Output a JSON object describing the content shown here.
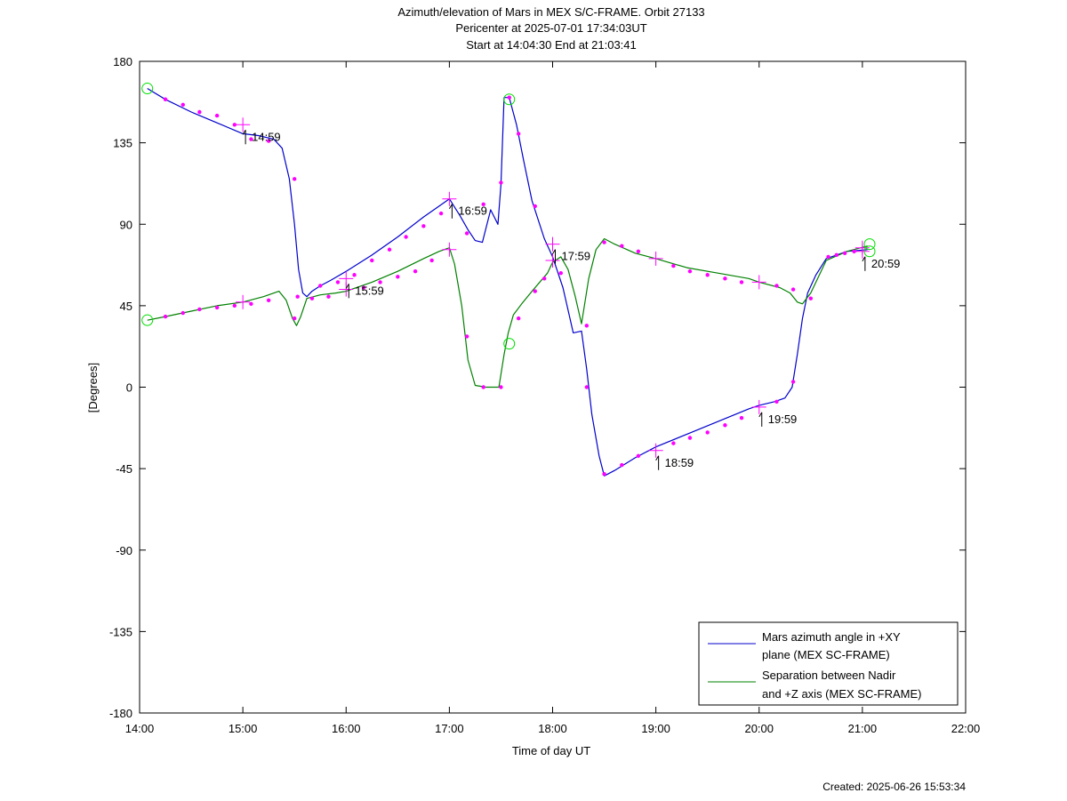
{
  "chart_data": {
    "type": "line",
    "title": [
      "Azimuth/elevation of Mars in MEX S/C-FRAME.  Orbit 27133",
      "Pericenter at 2025-07-01 17:34:03UT",
      "Start at 14:04:30 End at 21:03:41"
    ],
    "xlabel": "Time of day UT",
    "ylabel": "[Degrees]",
    "xlim": [
      14.0,
      22.0
    ],
    "ylim": [
      -180,
      180
    ],
    "xticks": [
      {
        "v": 14,
        "label": "14:00"
      },
      {
        "v": 15,
        "label": "15:00"
      },
      {
        "v": 16,
        "label": "16:00"
      },
      {
        "v": 17,
        "label": "17:00"
      },
      {
        "v": 18,
        "label": "18:00"
      },
      {
        "v": 19,
        "label": "19:00"
      },
      {
        "v": 20,
        "label": "20:00"
      },
      {
        "v": 21,
        "label": "21:00"
      },
      {
        "v": 22,
        "label": "22:00"
      }
    ],
    "yticks": [
      {
        "v": 180,
        "label": "180"
      },
      {
        "v": 135,
        "label": "135"
      },
      {
        "v": 90,
        "label": "90"
      },
      {
        "v": 45,
        "label": "45"
      },
      {
        "v": 0,
        "label": "0"
      },
      {
        "v": -45,
        "label": "-45"
      },
      {
        "v": -90,
        "label": "-90"
      },
      {
        "v": -135,
        "label": "-135"
      },
      {
        "v": -180,
        "label": "-180"
      }
    ],
    "grid": false,
    "legend_position": "bottom-right",
    "series": [
      {
        "name": "Mars azimuth angle in +XY plane (MEX SC-FRAME)",
        "legend_lines": [
          "Mars azimuth angle in +XY",
          "plane (MEX SC-FRAME)"
        ],
        "color": "#0000cc",
        "x": [
          14.075,
          14.25,
          14.5,
          14.75,
          15.0,
          15.15,
          15.3,
          15.38,
          15.45,
          15.5,
          15.54,
          15.58,
          15.62,
          15.67,
          15.75,
          15.85,
          16.0,
          16.25,
          16.5,
          16.75,
          16.9,
          17.0,
          17.1,
          17.18,
          17.25,
          17.32,
          17.4,
          17.47,
          17.5,
          17.53,
          17.58,
          17.65,
          17.72,
          17.8,
          17.92,
          18.0,
          18.1,
          18.2,
          18.28,
          18.33,
          18.38,
          18.45,
          18.5,
          18.6,
          18.8,
          19.0,
          19.3,
          19.6,
          19.9,
          20.0,
          20.15,
          20.25,
          20.32,
          20.37,
          20.42,
          20.47,
          20.55,
          20.65,
          20.85,
          21.05
        ],
        "y": [
          165,
          159,
          152,
          146,
          140,
          139,
          137,
          132,
          115,
          90,
          65,
          52,
          50,
          53,
          56,
          59,
          64,
          73,
          83,
          94,
          100,
          104,
          95,
          87,
          81,
          80,
          98,
          90,
          112,
          160,
          160,
          145,
          125,
          103,
          82,
          72,
          55,
          30,
          31,
          10,
          -15,
          -38,
          -49,
          -46,
          -39,
          -33,
          -26,
          -19,
          -12,
          -10,
          -8,
          -6,
          0,
          18,
          38,
          52,
          62,
          71,
          75,
          76
        ]
      },
      {
        "name": "Separation between Nadir and +Z axis (MEX SC-FRAME)",
        "legend_lines": [
          "Separation between Nadir",
          "and +Z axis (MEX SC-FRAME)"
        ],
        "color": "#008000",
        "x": [
          14.075,
          14.25,
          14.5,
          14.75,
          15.0,
          15.2,
          15.35,
          15.42,
          15.48,
          15.52,
          15.56,
          15.62,
          15.75,
          15.9,
          16.0,
          16.25,
          16.5,
          16.75,
          16.9,
          17.0,
          17.05,
          17.12,
          17.18,
          17.25,
          17.35,
          17.48,
          17.53,
          17.57,
          17.62,
          17.7,
          17.8,
          17.95,
          18.0,
          18.08,
          18.15,
          18.22,
          18.28,
          18.35,
          18.42,
          18.5,
          18.6,
          18.8,
          19.0,
          19.3,
          19.6,
          19.9,
          20.0,
          20.2,
          20.3,
          20.37,
          20.42,
          20.5,
          20.65,
          20.85,
          21.05
        ],
        "y": [
          37,
          39,
          42,
          45,
          47,
          50,
          53,
          48,
          38,
          34,
          39,
          49,
          51,
          52,
          53,
          58,
          64,
          71,
          75,
          77,
          68,
          45,
          15,
          1,
          0,
          0,
          18,
          30,
          40,
          46,
          53,
          63,
          69,
          72,
          65,
          50,
          35,
          60,
          76,
          82,
          79,
          74,
          71,
          66,
          63,
          60,
          58,
          55,
          52,
          47,
          46,
          52,
          70,
          75,
          78
        ]
      }
    ],
    "dots": [
      {
        "series": 0,
        "x": [
          14.25,
          14.42,
          14.58,
          14.75,
          14.92,
          15.08,
          15.25,
          15.5,
          15.53,
          15.75,
          15.92,
          16.08,
          16.25,
          16.42,
          16.58,
          16.75,
          16.92,
          17.17,
          17.33,
          17.5,
          17.58,
          17.67,
          17.83,
          18.33,
          18.5,
          18.67,
          18.83,
          19.17,
          19.33,
          19.5,
          19.67,
          19.83,
          20.17,
          20.33,
          20.5,
          20.67,
          20.75,
          20.83,
          20.92
        ],
        "y": [
          159,
          156,
          152,
          150,
          145,
          137,
          136,
          115,
          50,
          56,
          58,
          62,
          70,
          76,
          83,
          89,
          96,
          85,
          101,
          113,
          160,
          140,
          100,
          0,
          -48,
          -43,
          -38,
          -31,
          -28,
          -25,
          -21,
          -17,
          -8,
          3,
          49,
          72,
          73,
          74,
          75
        ]
      },
      {
        "series": 1,
        "x": [
          14.25,
          14.42,
          14.58,
          14.75,
          14.92,
          15.08,
          15.25,
          15.5,
          15.67,
          15.83,
          16.17,
          16.33,
          16.5,
          16.67,
          16.83,
          17.17,
          17.33,
          17.5,
          17.67,
          17.83,
          17.92,
          18.08,
          18.33,
          18.5,
          18.67,
          18.83,
          19.17,
          19.33,
          19.5,
          19.67,
          19.83,
          20.17,
          20.33
        ],
        "y": [
          39,
          41,
          43,
          44,
          45,
          46,
          48,
          38,
          49,
          50,
          55,
          58,
          61,
          64,
          70,
          28,
          0,
          0,
          38,
          53,
          60,
          63,
          34,
          80,
          78,
          75,
          67,
          64,
          62,
          60,
          58,
          56,
          54
        ]
      }
    ],
    "hour_markers": [
      {
        "x": 15.0,
        "y": 145,
        "label": "14:59"
      },
      {
        "x": 16.0,
        "y": 60,
        "label": "15:59"
      },
      {
        "x": 17.0,
        "y": 104,
        "label": "16:59"
      },
      {
        "x": 18.0,
        "y": 79,
        "label": "17:59"
      },
      {
        "x": 19.0,
        "y": -35,
        "label": "18:59"
      },
      {
        "x": 20.0,
        "y": -11,
        "label": "19:59"
      },
      {
        "x": 21.0,
        "y": 75,
        "label": "20:59"
      }
    ],
    "plus_only_markers": [
      {
        "x": 15.0,
        "y": 47
      },
      {
        "x": 16.0,
        "y": 54
      },
      {
        "x": 17.0,
        "y": 76
      },
      {
        "x": 18.0,
        "y": 70
      },
      {
        "x": 19.0,
        "y": 71
      },
      {
        "x": 20.0,
        "y": 58
      },
      {
        "x": 21.0,
        "y": 77
      }
    ],
    "circle_markers": [
      {
        "x": 14.075,
        "y": 165
      },
      {
        "x": 14.075,
        "y": 37
      },
      {
        "x": 17.58,
        "y": 159
      },
      {
        "x": 17.58,
        "y": 24
      },
      {
        "x": 21.07,
        "y": 79
      },
      {
        "x": 21.07,
        "y": 75
      }
    ]
  },
  "footer": {
    "created": "Created: 2025-06-26 15:53:34"
  }
}
